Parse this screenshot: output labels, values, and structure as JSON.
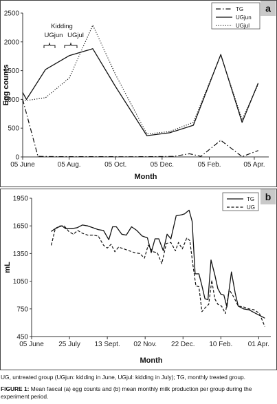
{
  "chart_data": [
    {
      "type": "line",
      "panel_label": "a",
      "xlabel": "Month",
      "ylabel": "Egg counts",
      "ylim": [
        0,
        2500
      ],
      "yticks": [
        0,
        500,
        1000,
        1500,
        2000,
        2500
      ],
      "xticks": [
        "05 June",
        "05 Aug.",
        "05 Oct.",
        "05 Dec.",
        "05 Feb.",
        "05 Apr."
      ],
      "grid": false,
      "legend_position": "top-right",
      "annotations": {
        "kidding": "Kidding",
        "ugjun": "UGjun",
        "ugjul": "UGjul"
      },
      "series": [
        {
          "name": "TG",
          "style": "dash-dot",
          "points": [
            [
              "2000-06-05",
              1000
            ],
            [
              "2000-06-25",
              10
            ],
            [
              "2000-07-20",
              5
            ],
            [
              "2000-08-20",
              5
            ],
            [
              "2000-09-20",
              5
            ],
            [
              "2000-10-20",
              3
            ],
            [
              "2000-11-25",
              5
            ],
            [
              "2000-12-20",
              10
            ],
            [
              "2001-01-10",
              55
            ],
            [
              "2001-01-25",
              10
            ],
            [
              "2001-02-20",
              290
            ],
            [
              "2001-03-20",
              5
            ],
            [
              "2001-04-10",
              110
            ]
          ]
        },
        {
          "name": "UGjun",
          "style": "solid",
          "points": [
            [
              "2000-06-05",
              1120
            ],
            [
              "2000-06-10",
              1000
            ],
            [
              "2000-07-05",
              1520
            ],
            [
              "2000-08-05",
              1760
            ],
            [
              "2000-09-05",
              1880
            ],
            [
              "2000-10-05",
              1220
            ],
            [
              "2000-11-15",
              370
            ],
            [
              "2000-12-15",
              420
            ],
            [
              "2001-01-15",
              550
            ],
            [
              "2001-02-20",
              1780
            ],
            [
              "2001-03-20",
              600
            ],
            [
              "2001-04-10",
              1280
            ]
          ]
        },
        {
          "name": "UGjul",
          "style": "dotted",
          "points": [
            [
              "2000-06-05",
              970
            ],
            [
              "2000-07-05",
              1030
            ],
            [
              "2000-08-05",
              1370
            ],
            [
              "2000-09-05",
              2290
            ],
            [
              "2000-10-05",
              1430
            ],
            [
              "2000-11-15",
              400
            ],
            [
              "2000-12-15",
              440
            ],
            [
              "2001-01-15",
              600
            ],
            [
              "2001-02-20",
              1770
            ],
            [
              "2001-03-20",
              650
            ],
            [
              "2001-04-10",
              1260
            ]
          ]
        }
      ]
    },
    {
      "type": "line",
      "panel_label": "b",
      "xlabel": "Month",
      "ylabel": "mL",
      "ylim": [
        450,
        1950
      ],
      "yticks": [
        450,
        750,
        1050,
        1350,
        1650,
        1950
      ],
      "xticks": [
        "05 June",
        "25 July",
        "13 Sept.",
        "02 Nov.",
        "22 Dec.",
        "10 Feb.",
        "01 Apr."
      ],
      "grid": false,
      "legend_position": "top-right",
      "series": [
        {
          "name": "TG",
          "style": "solid",
          "points": [
            [
              "2000-07-01",
              1590
            ],
            [
              "2000-07-08",
              1630
            ],
            [
              "2000-07-15",
              1650
            ],
            [
              "2000-07-20",
              1620
            ],
            [
              "2000-07-28",
              1620
            ],
            [
              "2000-08-04",
              1630
            ],
            [
              "2000-08-11",
              1660
            ],
            [
              "2000-08-18",
              1650
            ],
            [
              "2000-08-25",
              1630
            ],
            [
              "2000-09-01",
              1610
            ],
            [
              "2000-09-08",
              1600
            ],
            [
              "2000-09-15",
              1500
            ],
            [
              "2000-09-20",
              1640
            ],
            [
              "2000-09-25",
              1640
            ],
            [
              "2000-10-02",
              1560
            ],
            [
              "2000-10-08",
              1550
            ],
            [
              "2000-10-15",
              1640
            ],
            [
              "2000-10-22",
              1600
            ],
            [
              "2000-10-29",
              1540
            ],
            [
              "2000-11-05",
              1520
            ],
            [
              "2000-11-10",
              1360
            ],
            [
              "2000-11-15",
              1510
            ],
            [
              "2000-11-20",
              1510
            ],
            [
              "2000-11-26",
              1380
            ],
            [
              "2000-12-01",
              1560
            ],
            [
              "2000-12-06",
              1510
            ],
            [
              "2000-12-13",
              1760
            ],
            [
              "2000-12-20",
              1770
            ],
            [
              "2000-12-24",
              1780
            ],
            [
              "2000-12-30",
              1820
            ],
            [
              "2001-01-03",
              1700
            ],
            [
              "2001-01-07",
              1130
            ],
            [
              "2001-01-12",
              1130
            ],
            [
              "2001-01-16",
              1000
            ],
            [
              "2001-01-20",
              860
            ],
            [
              "2001-01-24",
              850
            ],
            [
              "2001-01-28",
              1280
            ],
            [
              "2001-02-02",
              1120
            ],
            [
              "2001-02-06",
              970
            ],
            [
              "2001-02-10",
              910
            ],
            [
              "2001-02-14",
              900
            ],
            [
              "2001-02-18",
              770
            ],
            [
              "2001-02-24",
              1150
            ],
            [
              "2001-03-01",
              920
            ],
            [
              "2001-03-05",
              780
            ],
            [
              "2001-03-12",
              750
            ],
            [
              "2001-03-19",
              740
            ],
            [
              "2001-03-26",
              710
            ],
            [
              "2001-04-02",
              680
            ],
            [
              "2001-04-09",
              650
            ]
          ]
        },
        {
          "name": "UG",
          "style": "dashed",
          "points": [
            [
              "2000-07-01",
              1440
            ],
            [
              "2000-07-06",
              1610
            ],
            [
              "2000-07-12",
              1650
            ],
            [
              "2000-07-18",
              1650
            ],
            [
              "2000-07-24",
              1590
            ],
            [
              "2000-07-30",
              1560
            ],
            [
              "2000-08-05",
              1600
            ],
            [
              "2000-08-11",
              1570
            ],
            [
              "2000-08-18",
              1550
            ],
            [
              "2000-08-25",
              1550
            ],
            [
              "2000-09-01",
              1540
            ],
            [
              "2000-09-08",
              1440
            ],
            [
              "2000-09-13",
              1410
            ],
            [
              "2000-09-18",
              1450
            ],
            [
              "2000-09-23",
              1370
            ],
            [
              "2000-09-28",
              1420
            ],
            [
              "2000-10-05",
              1400
            ],
            [
              "2000-10-12",
              1380
            ],
            [
              "2000-10-19",
              1360
            ],
            [
              "2000-10-26",
              1350
            ],
            [
              "2000-11-01",
              1300
            ],
            [
              "2000-11-06",
              1440
            ],
            [
              "2000-11-12",
              1370
            ],
            [
              "2000-11-18",
              1360
            ],
            [
              "2000-11-24",
              1240
            ],
            [
              "2000-11-30",
              1460
            ],
            [
              "2000-12-06",
              1470
            ],
            [
              "2000-12-12",
              1380
            ],
            [
              "2000-12-16",
              1470
            ],
            [
              "2000-12-21",
              1400
            ],
            [
              "2000-12-27",
              1520
            ],
            [
              "2000-12-31",
              1490
            ],
            [
              "2001-01-04",
              1230
            ],
            [
              "2001-01-08",
              1000
            ],
            [
              "2001-01-12",
              990
            ],
            [
              "2001-01-16",
              720
            ],
            [
              "2001-01-20",
              760
            ],
            [
              "2001-01-25",
              800
            ],
            [
              "2001-01-29",
              1060
            ],
            [
              "2001-02-02",
              860
            ],
            [
              "2001-02-06",
              800
            ],
            [
              "2001-02-11",
              780
            ],
            [
              "2001-02-16",
              700
            ],
            [
              "2001-02-21",
              960
            ],
            [
              "2001-02-27",
              880
            ],
            [
              "2001-03-05",
              780
            ],
            [
              "2001-03-12",
              770
            ],
            [
              "2001-03-19",
              750
            ],
            [
              "2001-03-26",
              740
            ],
            [
              "2001-04-02",
              700
            ],
            [
              "2001-04-09",
              560
            ]
          ]
        }
      ]
    }
  ],
  "caption": {
    "abbrev": "UG, untreated group (UGjun: kidding in June, UGjul: kidding in July); TG, monthly treated group.",
    "figure_label": "FIGURE 1:",
    "figure_text": " Mean faecal (a) egg counts and (b) mean monthly milk production per group during the experiment period."
  }
}
